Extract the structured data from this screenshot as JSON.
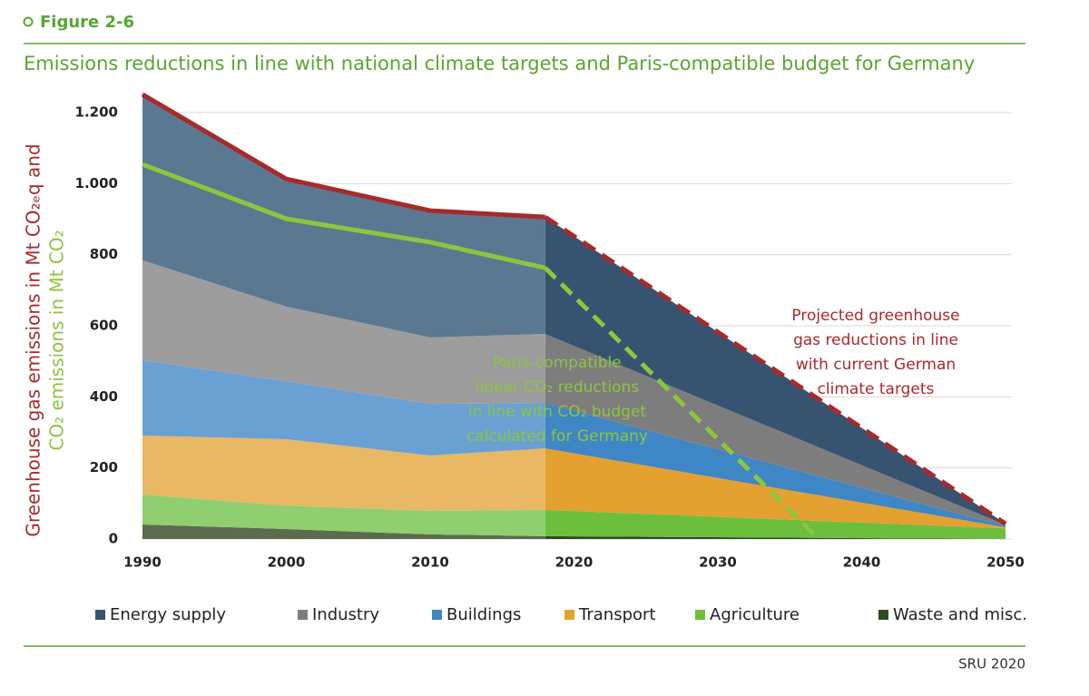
{
  "figure_label": "Figure 2-6",
  "source": "SRU 2020",
  "chart_data": {
    "type": "area",
    "stacked": true,
    "title": "Emissions reductions in line with national climate targets and Paris-compatible budget for Germany",
    "y_label_lines": [
      {
        "text": "Greenhouse gas emissions in Mt CO₂ₑq and",
        "color": "#a82a2a"
      },
      {
        "text": "CO₂ emissions in Mt CO₂",
        "color": "#8cc63f"
      }
    ],
    "x": [
      1990,
      2000,
      2010,
      2018,
      2050
    ],
    "xlim": [
      1990,
      2050
    ],
    "xticks": [
      1990,
      2000,
      2010,
      2020,
      2030,
      2040,
      2050
    ],
    "ylim": [
      0,
      1200
    ],
    "yticks": [
      0,
      200,
      400,
      600,
      800,
      {
        "value": 1000,
        "label": "1.000"
      },
      {
        "value": 1200,
        "label": "1.200"
      }
    ],
    "grid": true,
    "projection_start": 2018,
    "series": [
      {
        "name": "Waste and misc.",
        "color": "#2f4a22",
        "historical_color": "#5b6b4e",
        "values": [
          41,
          28,
          13,
          8,
          0
        ]
      },
      {
        "name": "Agriculture",
        "color": "#6cbf3c",
        "historical_color": "#8fcf70",
        "values": [
          84,
          66,
          66,
          74,
          30
        ]
      },
      {
        "name": "Transport",
        "color": "#e3a12f",
        "historical_color": "#e9b864",
        "values": [
          166,
          187,
          156,
          173,
          3
        ]
      },
      {
        "name": "Buildings",
        "color": "#3f86c4",
        "historical_color": "#6aa1d2",
        "values": [
          212,
          163,
          145,
          128,
          3
        ]
      },
      {
        "name": "Industry",
        "color": "#7d7d7d",
        "historical_color": "#9d9d9d",
        "values": [
          281,
          210,
          187,
          194,
          4
        ]
      },
      {
        "name": "Energy supply",
        "color": "#36536f",
        "historical_color": "#5b7891",
        "values": [
          467,
          359,
          357,
          329,
          3
        ]
      }
    ],
    "lines": [
      {
        "color": "#a82a2a",
        "x": [
          1990,
          2000,
          2010,
          2018,
          2050
        ],
        "values": [
          1251,
          1013,
          924,
          906,
          43
        ]
      },
      {
        "color": "#8cc63f",
        "x": [
          1990,
          2000,
          2010,
          2018,
          2037
        ],
        "values": [
          1054,
          901,
          835,
          763,
          0
        ]
      }
    ],
    "annotations": [
      {
        "color": "#a82a2a",
        "lines": [
          "Projected greenhouse",
          "gas reductions in line",
          "with current German",
          "climate targets"
        ]
      },
      {
        "color": "#8cc63f",
        "lines": [
          "Paris-compatible",
          "linear CO₂ reductions",
          "in line with CO₂ budget",
          "calculated for Germany"
        ]
      }
    ],
    "legend_order": [
      5,
      4,
      3,
      2,
      1,
      0
    ]
  }
}
